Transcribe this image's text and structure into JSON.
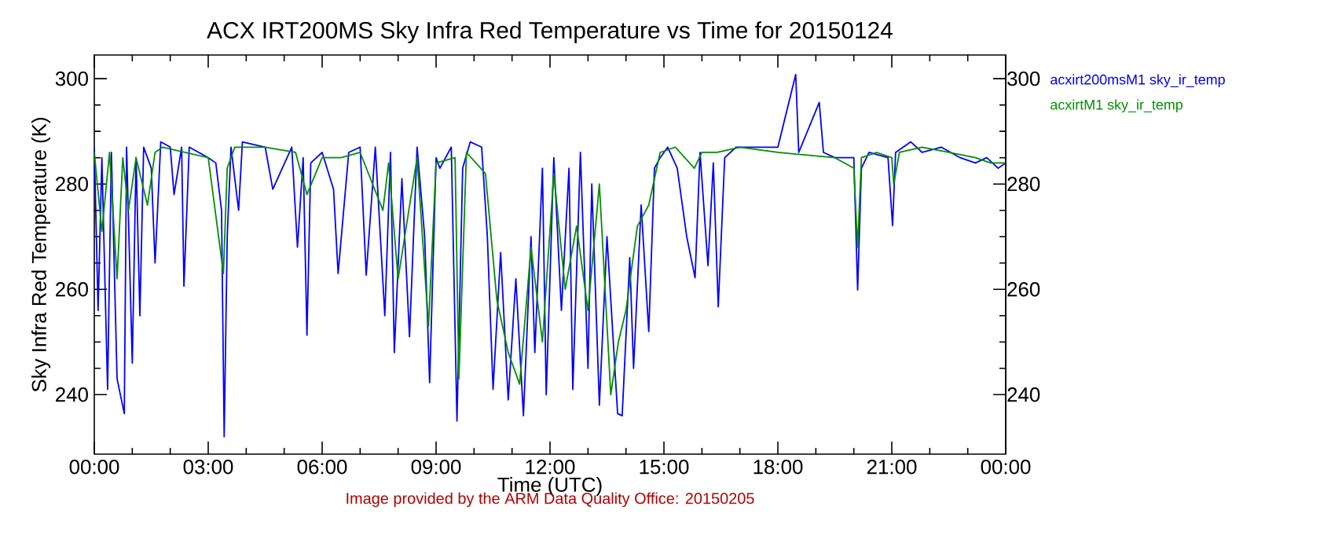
{
  "chart_data": {
    "type": "line",
    "title": "ACX IRT200MS Sky Infra Red Temperature vs Time for 20150124",
    "xlabel": "Time (UTC)",
    "ylabel": "Sky Infra Red Temperature (K)",
    "annotations": [
      "Image provided by the ARM Data Quality Office: 20150205"
    ],
    "xlim": [
      0,
      24
    ],
    "xticks": [
      {
        "value": 0,
        "label": "00:00"
      },
      {
        "value": 3,
        "label": "03:00"
      },
      {
        "value": 6,
        "label": "06:00"
      },
      {
        "value": 9,
        "label": "09:00"
      },
      {
        "value": 12,
        "label": "12:00"
      },
      {
        "value": 15,
        "label": "15:00"
      },
      {
        "value": 18,
        "label": "18:00"
      },
      {
        "value": 21,
        "label": "21:00"
      },
      {
        "value": 24,
        "label": "00:00"
      }
    ],
    "ylim": [
      228.7,
      304.5
    ],
    "yticks": [
      240,
      260,
      280,
      300
    ],
    "y2lim": [
      228.7,
      304.5
    ],
    "y2ticks": [
      240,
      260,
      280,
      300
    ],
    "legend": "top right",
    "series": [
      {
        "name": "acxirt200msM1 sky_ir_temp",
        "color": "#0000ff",
        "x": [
          0.0,
          0.1,
          0.2,
          0.35,
          0.45,
          0.6,
          0.79,
          0.85,
          1.0,
          1.1,
          1.2,
          1.3,
          1.5,
          1.6,
          1.75,
          2.0,
          2.1,
          2.3,
          2.36,
          2.5,
          3.0,
          3.2,
          3.35,
          3.42,
          3.5,
          3.6,
          3.8,
          3.9,
          4.5,
          4.7,
          5.2,
          5.35,
          5.5,
          5.6,
          5.7,
          6.0,
          6.3,
          6.42,
          6.7,
          7.0,
          7.16,
          7.4,
          7.65,
          7.8,
          7.9,
          8.1,
          8.3,
          8.5,
          8.7,
          8.83,
          9.0,
          9.1,
          9.4,
          9.55,
          9.7,
          9.9,
          10.2,
          10.35,
          10.5,
          10.7,
          10.9,
          11.1,
          11.3,
          11.5,
          11.6,
          11.8,
          11.9,
          12.1,
          12.3,
          12.5,
          12.6,
          12.8,
          13.0,
          13.1,
          13.3,
          13.5,
          13.78,
          13.9,
          14.1,
          14.2,
          14.4,
          14.6,
          14.75,
          14.9,
          15.1,
          15.35,
          15.6,
          15.82,
          15.95,
          16.16,
          16.3,
          16.43,
          16.6,
          16.9,
          17.3,
          18.0,
          18.47,
          18.55,
          19.09,
          19.2,
          19.5,
          20.0,
          20.1,
          20.2,
          20.4,
          20.9,
          21.02,
          21.1,
          21.5,
          21.8,
          22.3,
          22.8,
          23.2,
          23.5,
          23.8,
          24.0
        ],
        "values": [
          287,
          256,
          285,
          241,
          286,
          243,
          236.4,
          287,
          246,
          285,
          255,
          287,
          283,
          265,
          288,
          287,
          278,
          287,
          260.6,
          287,
          285,
          284,
          275,
          232,
          270,
          287,
          275,
          288,
          287,
          279,
          287,
          268,
          285,
          251.3,
          284,
          286,
          279,
          263,
          286,
          287,
          262.7,
          287,
          255,
          286,
          248,
          281,
          251,
          287,
          270,
          242.3,
          285,
          283,
          287,
          235,
          283,
          288,
          287,
          270,
          241,
          267,
          239,
          262,
          236,
          270,
          248,
          283,
          240,
          285,
          256,
          283,
          241,
          286,
          245,
          280,
          238,
          270,
          236.4,
          236,
          266,
          245,
          276,
          252,
          283,
          285,
          287,
          283,
          270,
          262.2,
          286,
          264.5,
          284,
          256.7,
          285,
          287,
          287,
          287,
          300.8,
          286,
          295.5,
          286,
          285,
          285,
          259.9,
          283,
          286,
          285,
          272.1,
          286,
          288,
          286,
          287,
          285,
          284,
          285,
          283,
          284
        ]
      },
      {
        "name": "acxirtM1 sky_ir_temp",
        "color": "#008f00",
        "x": [
          0.0,
          0.2,
          0.4,
          0.6,
          0.75,
          0.9,
          1.1,
          1.4,
          1.6,
          1.8,
          2.4,
          3.0,
          3.4,
          3.5,
          3.7,
          4.5,
          5.3,
          5.6,
          6.0,
          6.5,
          7.0,
          7.6,
          7.75,
          8.0,
          8.5,
          8.8,
          9.0,
          9.5,
          9.6,
          9.8,
          10.3,
          10.6,
          10.9,
          11.2,
          11.5,
          11.8,
          12.1,
          12.4,
          12.7,
          13.0,
          13.3,
          13.6,
          13.8,
          14.0,
          14.3,
          14.6,
          14.9,
          15.3,
          15.8,
          16.0,
          16.4,
          17.0,
          18.0,
          19.5,
          20.0,
          20.1,
          20.2,
          20.6,
          21.0,
          21.05,
          21.2,
          21.8,
          22.5,
          23.2,
          23.6,
          24.0
        ],
        "values": [
          286,
          271,
          286,
          262,
          285,
          275,
          285,
          276,
          286,
          287,
          286,
          285,
          263,
          283,
          287,
          287,
          286,
          278,
          285,
          285,
          286,
          275,
          284,
          262,
          285,
          253,
          284,
          285,
          243,
          286,
          282,
          258,
          248,
          242,
          268,
          250,
          282,
          260,
          272,
          256,
          280,
          240,
          250,
          256,
          272,
          276,
          286,
          287,
          283,
          286,
          286,
          287,
          286,
          285,
          283,
          268,
          285,
          286,
          285,
          280,
          286,
          287,
          286,
          285,
          284,
          284
        ]
      }
    ]
  }
}
